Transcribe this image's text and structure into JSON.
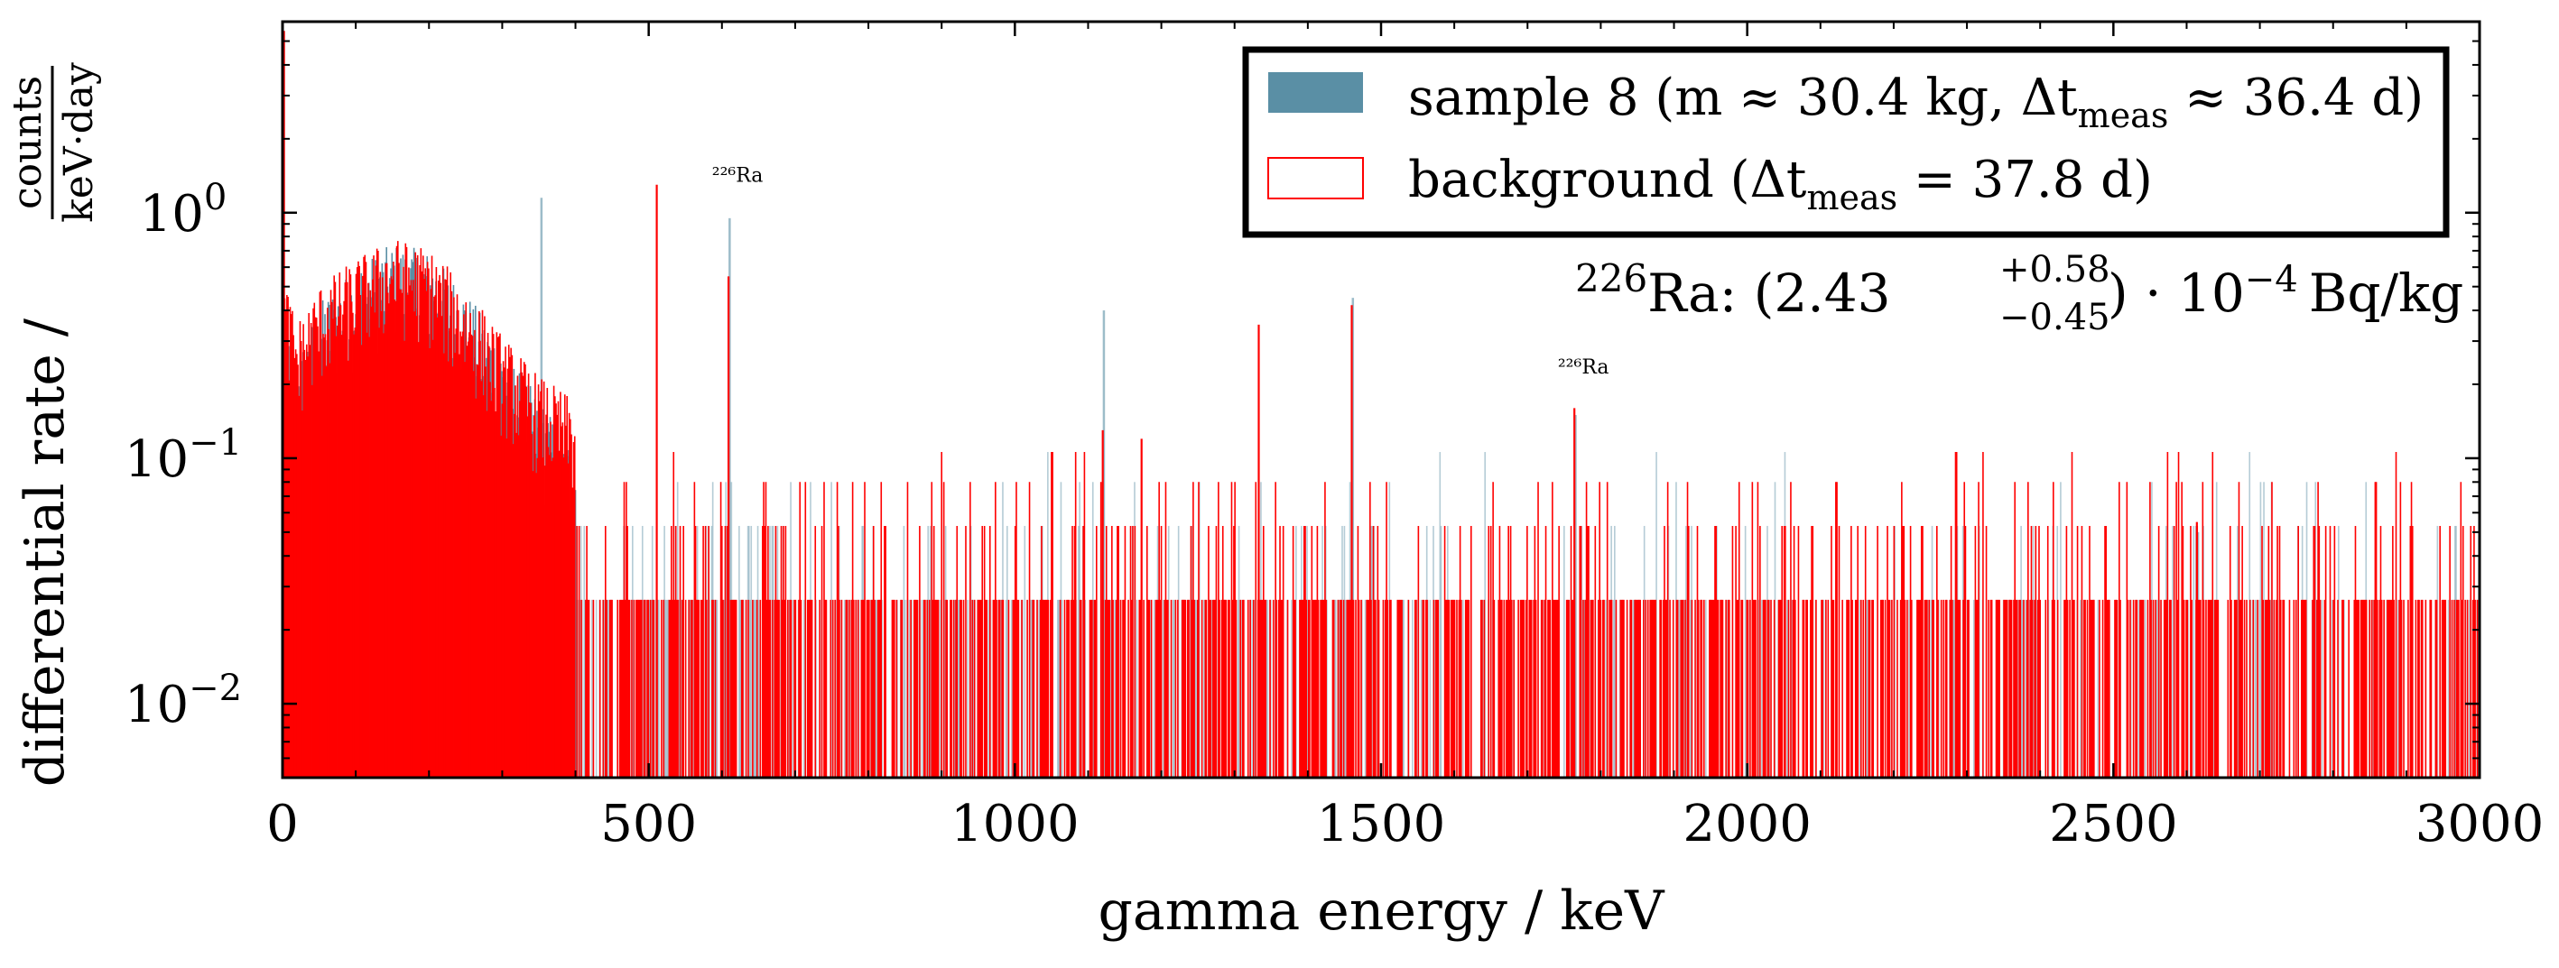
{
  "chart_data": {
    "type": "bar",
    "xlabel": "gamma energy / keV",
    "ylabel_main": "differential rate /",
    "ylabel_unit_num": "counts",
    "ylabel_unit_den": "keV·day",
    "xlim": [
      0,
      3000
    ],
    "ylim": [
      0.005,
      6
    ],
    "yscale": "log",
    "xticks": [
      0,
      500,
      1000,
      1500,
      2000,
      2500,
      3000
    ],
    "xtick_labels": [
      "0",
      "500",
      "1000",
      "1500",
      "2000",
      "2500",
      "3000"
    ],
    "yticks": [
      {
        "value": 1,
        "base": "10",
        "exp": "0"
      },
      {
        "value": 0.1,
        "base": "10",
        "exp": "−1"
      },
      {
        "value": 0.01,
        "base": "10",
        "exp": "−2"
      }
    ],
    "legend": {
      "position": "top-right",
      "entries": [
        {
          "label": "sample 8 (m ≈ 30.4 kg, Δt",
          "sub": "meas",
          "tail": " ≈ 36.4 d)",
          "color": "#5a8fa5",
          "style": "filled"
        },
        {
          "label": "background (Δt",
          "sub": "meas",
          "tail": " = 37.8 d)",
          "color": "#ff0000",
          "style": "outline"
        }
      ]
    },
    "series": [
      {
        "name": "sample 8",
        "color": "#5a8fa5",
        "description": "continuum envelope + lines",
        "continuum": [
          [
            0,
            0.3
          ],
          [
            20,
            0.18
          ],
          [
            50,
            0.3
          ],
          [
            100,
            0.42
          ],
          [
            150,
            0.52
          ],
          [
            200,
            0.48
          ],
          [
            250,
            0.33
          ],
          [
            300,
            0.2
          ],
          [
            350,
            0.12
          ],
          [
            400,
            0.075
          ],
          [
            450,
            0.05
          ],
          [
            500,
            0.04
          ],
          [
            600,
            0.03
          ],
          [
            800,
            0.022
          ],
          [
            1000,
            0.018
          ],
          [
            1500,
            0.014
          ],
          [
            2000,
            0.012
          ],
          [
            2500,
            0.011
          ],
          [
            3000,
            0.01
          ]
        ],
        "peaks": [
          [
            352,
            1.15
          ],
          [
            609,
            0.95
          ],
          [
            1120,
            0.4
          ],
          [
            1460,
            0.45
          ],
          [
            1764,
            0.15
          ],
          [
            2614,
            0.05
          ]
        ]
      },
      {
        "name": "background",
        "color": "#ff0000",
        "description": "continuum envelope + lines",
        "continuum": [
          [
            0,
            0.4
          ],
          [
            20,
            0.25
          ],
          [
            50,
            0.35
          ],
          [
            100,
            0.45
          ],
          [
            150,
            0.55
          ],
          [
            200,
            0.5
          ],
          [
            250,
            0.35
          ],
          [
            300,
            0.22
          ],
          [
            350,
            0.15
          ],
          [
            400,
            0.12
          ],
          [
            500,
            0.1
          ],
          [
            700,
            0.08
          ],
          [
            1000,
            0.065
          ],
          [
            1500,
            0.05
          ],
          [
            2000,
            0.04
          ],
          [
            2500,
            0.035
          ],
          [
            3000,
            0.03
          ]
        ],
        "peaks": [
          [
            2,
            5.5
          ],
          [
            511,
            1.3
          ],
          [
            609,
            0.55
          ],
          [
            1120,
            0.13
          ],
          [
            1173,
            0.12
          ],
          [
            1333,
            0.35
          ],
          [
            1460,
            0.42
          ],
          [
            1764,
            0.16
          ],
          [
            2614,
            0.055
          ]
        ]
      }
    ],
    "annotations": [
      {
        "text": "²²⁶Ra",
        "x": 609,
        "y": 1.15,
        "size": "small"
      },
      {
        "text": "²²⁶Ra",
        "x": 1764,
        "y": 0.19,
        "size": "small"
      }
    ],
    "result": {
      "isotope_sup": "226",
      "isotope": "Ra",
      "value": "2.43",
      "err_up": "+0.58",
      "err_down": "−0.45",
      "exp_text": "10",
      "exp": "−4",
      "unit": "Bq/kg"
    }
  }
}
